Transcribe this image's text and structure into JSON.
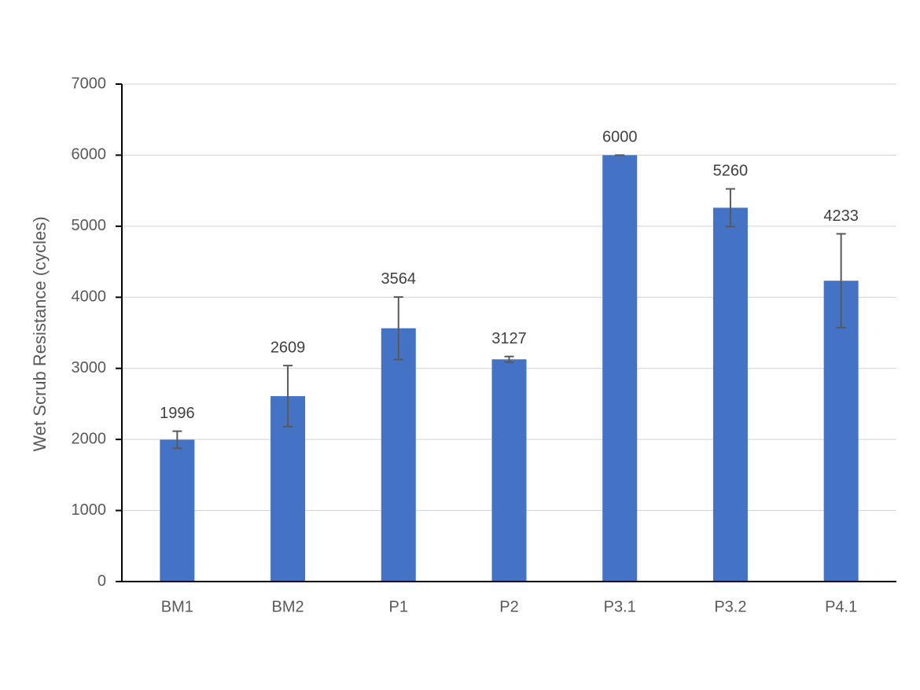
{
  "chart_data": {
    "type": "bar",
    "y_label": "Wet Scrub Resistance (cycles)",
    "categories": [
      "BM1",
      "BM2",
      "P1",
      "P2",
      "P3.1",
      "P3.2",
      "P4.1"
    ],
    "values": [
      1996,
      2609,
      3564,
      3127,
      6000,
      5260,
      4233
    ],
    "errors": [
      120,
      430,
      440,
      40,
      0,
      265,
      660
    ],
    "color": "#4472c4",
    "error_color": "#595959",
    "ylim": [
      0,
      7000
    ],
    "yticks": [
      0,
      1000,
      2000,
      3000,
      4000,
      5000,
      6000,
      7000
    ],
    "grid": true
  }
}
